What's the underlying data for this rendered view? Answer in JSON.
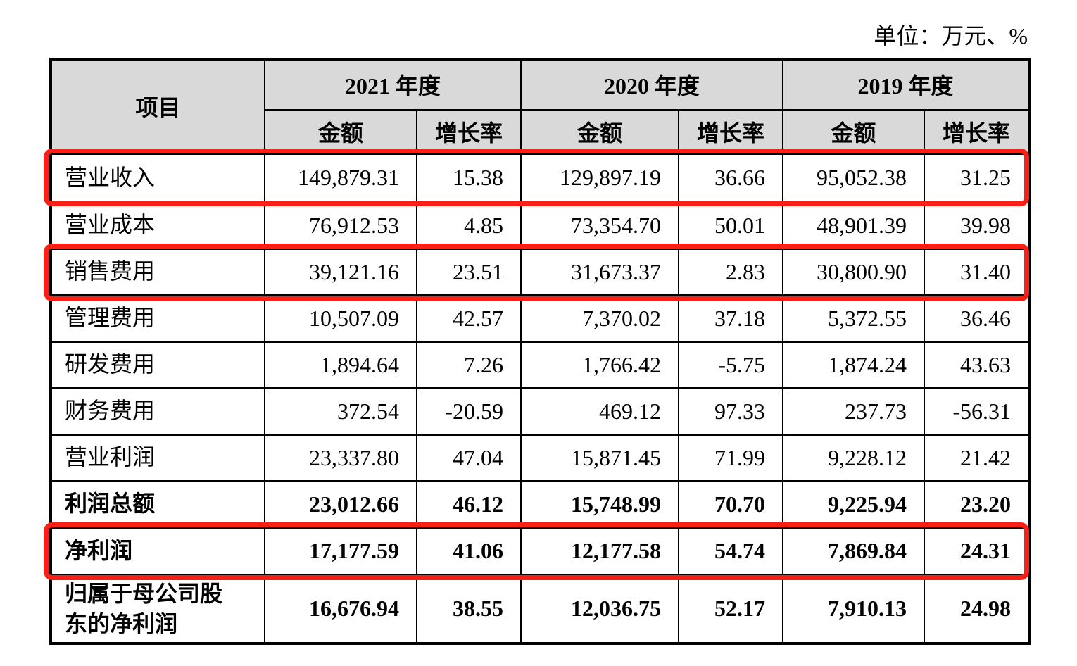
{
  "unit_note": "单位：万元、%",
  "colors": {
    "header_bg": "#d9d9d9",
    "highlight_red": "#fa2015",
    "border": "#000000",
    "background": "#ffffff"
  },
  "table": {
    "header": {
      "item": "项目",
      "year_groups": [
        "2021 年度",
        "2020 年度",
        "2019 年度"
      ],
      "sub_amount": "金额",
      "sub_growth": "增长率"
    },
    "rows": [
      {
        "label": "营业收入",
        "bold": false,
        "highlighted": true,
        "values": [
          "149,879.31",
          "15.38",
          "129,897.19",
          "36.66",
          "95,052.38",
          "31.25"
        ]
      },
      {
        "label": "营业成本",
        "bold": false,
        "highlighted": false,
        "values": [
          "76,912.53",
          "4.85",
          "73,354.70",
          "50.01",
          "48,901.39",
          "39.98"
        ]
      },
      {
        "label": "销售费用",
        "bold": false,
        "highlighted": true,
        "values": [
          "39,121.16",
          "23.51",
          "31,673.37",
          "2.83",
          "30,800.90",
          "31.40"
        ]
      },
      {
        "label": "管理费用",
        "bold": false,
        "highlighted": false,
        "values": [
          "10,507.09",
          "42.57",
          "7,370.02",
          "37.18",
          "5,372.55",
          "36.46"
        ]
      },
      {
        "label": "研发费用",
        "bold": false,
        "highlighted": false,
        "values": [
          "1,894.64",
          "7.26",
          "1,766.42",
          "-5.75",
          "1,874.24",
          "43.63"
        ]
      },
      {
        "label": "财务费用",
        "bold": false,
        "highlighted": false,
        "values": [
          "372.54",
          "-20.59",
          "469.12",
          "97.33",
          "237.73",
          "-56.31"
        ]
      },
      {
        "label": "营业利润",
        "bold": false,
        "highlighted": false,
        "values": [
          "23,337.80",
          "47.04",
          "15,871.45",
          "71.99",
          "9,228.12",
          "21.42"
        ]
      },
      {
        "label": "利润总额",
        "bold": true,
        "highlighted": false,
        "values": [
          "23,012.66",
          "46.12",
          "15,748.99",
          "70.70",
          "9,225.94",
          "23.20"
        ]
      },
      {
        "label": "净利润",
        "bold": true,
        "highlighted": true,
        "values": [
          "17,177.59",
          "41.06",
          "12,177.58",
          "54.74",
          "7,869.84",
          "24.31"
        ]
      },
      {
        "label": "归属于母公司股东的净利润",
        "bold": true,
        "highlighted": false,
        "values": [
          "16,676.94",
          "38.55",
          "12,036.75",
          "52.17",
          "7,910.13",
          "24.98"
        ]
      }
    ]
  }
}
